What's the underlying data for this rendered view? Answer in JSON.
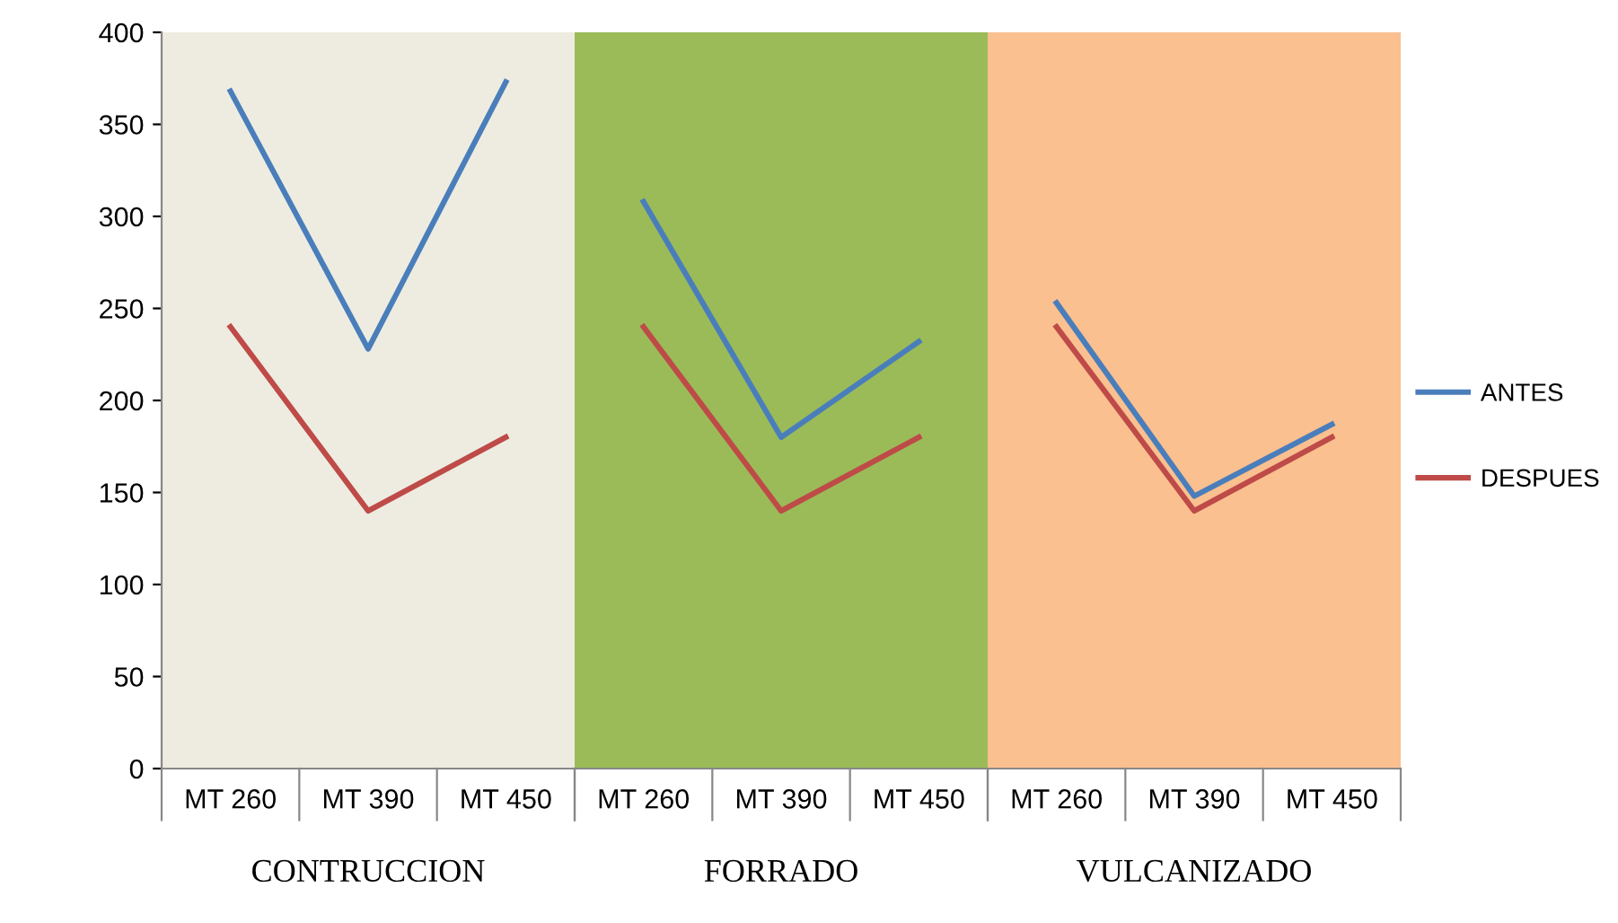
{
  "chart_data": [
    {
      "type": "line",
      "xlabel": "CONTRUCCION",
      "categories": [
        "MT 260",
        "MT 390",
        "MT 450"
      ],
      "ylim": [
        0,
        400
      ],
      "yticks": [
        0,
        50,
        100,
        150,
        200,
        250,
        300,
        350,
        400
      ],
      "grid": false,
      "legend": false,
      "marker": "none",
      "bands": [
        {
          "axis": "y",
          "from": 0,
          "to": 400,
          "color": "#eeece1"
        }
      ],
      "series": [
        {
          "color": "#4a7ebb",
          "values": [
            368,
            228,
            373
          ]
        },
        {
          "color": "#be4b48",
          "values": [
            240,
            140,
            180
          ]
        }
      ]
    },
    {
      "type": "line",
      "xlabel": "FORRADO",
      "categories": [
        "MT 260",
        "MT 390",
        "MT 450"
      ],
      "ylim": [
        0,
        400
      ],
      "tick_labels": "x",
      "grid": false,
      "legend": false,
      "marker": "none",
      "bands": [
        {
          "axis": "y",
          "from": 0,
          "to": 400,
          "color": "#9bbb59"
        }
      ],
      "series": [
        {
          "color": "#4a7ebb",
          "values": [
            308,
            180,
            232
          ]
        },
        {
          "color": "#be4b48",
          "values": [
            240,
            140,
            180
          ]
        }
      ]
    },
    {
      "type": "line",
      "xlabel": "VULCANIZADO",
      "categories": [
        "MT 260",
        "MT 390",
        "MT 450"
      ],
      "ylim": [
        0,
        400
      ],
      "tick_labels": "x",
      "grid": false,
      "legend": "right",
      "marker": "none",
      "bands": [
        {
          "axis": "y",
          "from": 0,
          "to": 400,
          "color": "#fac090"
        }
      ],
      "series": [
        {
          "name": "ANTES",
          "color": "#4a7ebb",
          "values": [
            253,
            148,
            187
          ]
        },
        {
          "name": "DESPUES",
          "color": "#be4b48",
          "values": [
            240,
            140,
            180
          ]
        }
      ]
    }
  ]
}
